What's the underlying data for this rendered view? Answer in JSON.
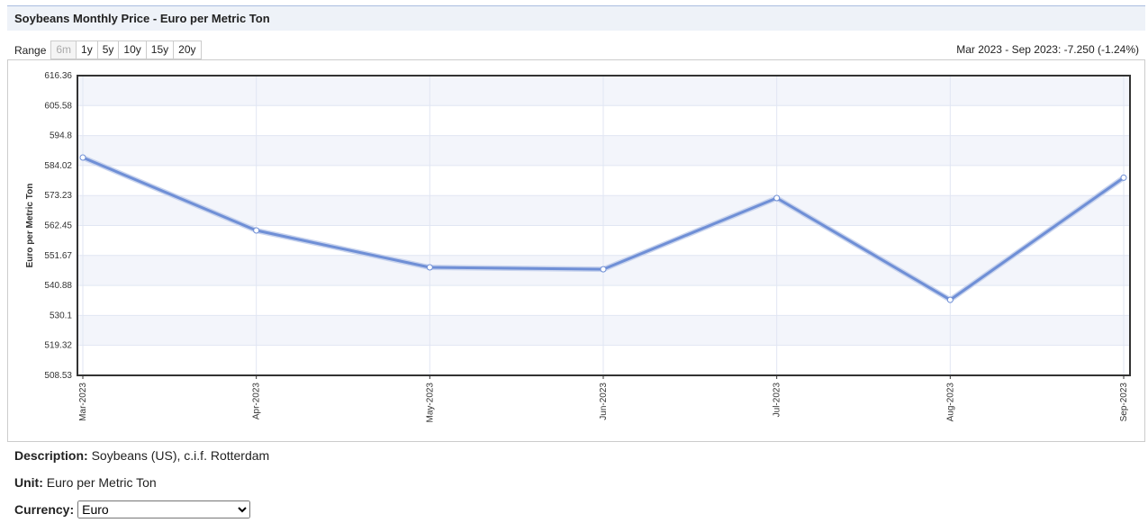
{
  "page": {
    "title": "Soybeans Monthly Price - Euro per Metric Ton",
    "range_label": "Range",
    "range_options": [
      "6m",
      "1y",
      "5y",
      "10y",
      "15y",
      "20y"
    ],
    "summary": "Mar 2023 - Sep 2023: -7.250 (-1.24%)",
    "description_label": "Description:",
    "description": "Soybeans (US), c.i.f. Rotterdam",
    "unit_label": "Unit:",
    "unit": "Euro per Metric Ton",
    "currency_label": "Currency:",
    "currency": "Euro"
  },
  "chart_data": {
    "type": "line",
    "y_label": "Euro per Metric Ton",
    "categories": [
      "Mar-2023",
      "Apr-2023",
      "May-2023",
      "Jun-2023",
      "Jul-2023",
      "Aug-2023",
      "Sep-2023"
    ],
    "values": [
      586.9,
      560.66,
      547.38,
      546.7,
      572.32,
      535.7,
      579.65
    ],
    "color": "#6f8fd6",
    "ylim": [
      508.53,
      616.36
    ],
    "yticks": [
      508.53,
      519.32,
      530.1,
      540.88,
      551.67,
      562.45,
      573.23,
      584.02,
      594.8,
      605.58,
      616.36
    ],
    "grid": true
  }
}
